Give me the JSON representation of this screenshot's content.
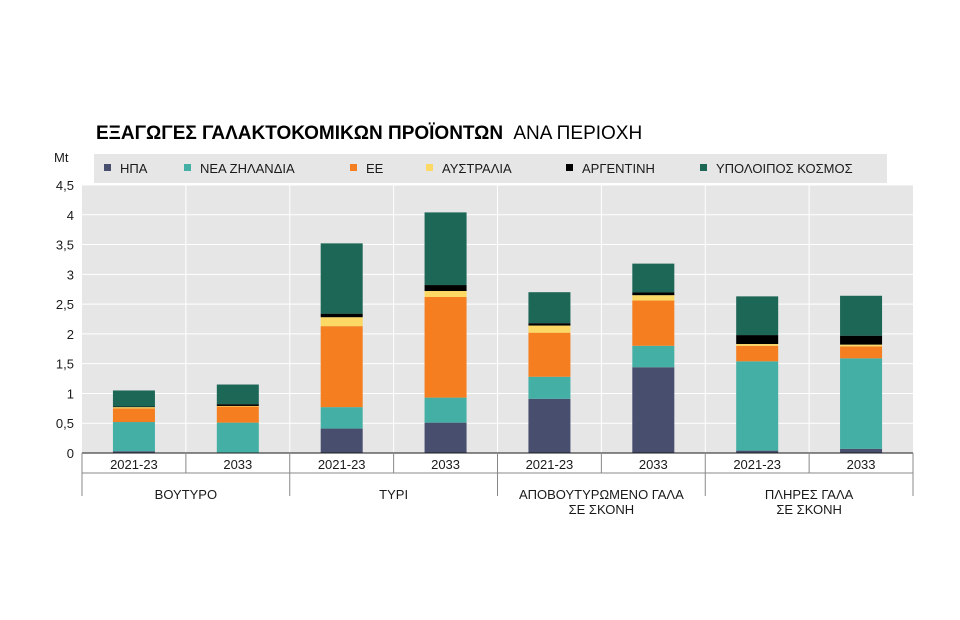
{
  "chart_data": {
    "type": "bar",
    "stacked": true,
    "title_bold": "ΕΞΑΓΩΓΕΣ ΓΑΛΑΚΤΟΚΟΜΙΚΩΝ ΠΡΟΪΟΝΤΩΝ",
    "title_rest": "ΑΝΑ ΠΕΡΙΟΧΗ",
    "ylabel": "Mt",
    "ylim": [
      0,
      4.5
    ],
    "yticks": [
      "0",
      "0,5",
      "1",
      "1,5",
      "2",
      "2,5",
      "3",
      "3,5",
      "4",
      "4,5"
    ],
    "grid": true,
    "legend_position": "top",
    "groups": [
      {
        "label_lines": [
          "ΒΟΥΤΥΡΟ"
        ],
        "categories": [
          "2021-23",
          "2033"
        ]
      },
      {
        "label_lines": [
          "ΤΥΡΙ"
        ],
        "categories": [
          "2021-23",
          "2033"
        ]
      },
      {
        "label_lines": [
          "ΑΠΟΒΟΥΤΥΡΩΜΕΝΟ ΓΑΛΑ",
          "ΣΕ ΣΚΟΝΗ"
        ],
        "categories": [
          "2021-23",
          "2033"
        ]
      },
      {
        "label_lines": [
          "ΠΛΗΡΕΣ ΓΑΛΑ",
          "ΣΕ ΣΚΟΝΗ"
        ],
        "categories": [
          "2021-23",
          "2033"
        ]
      }
    ],
    "series": [
      {
        "name": "ΗΠΑ",
        "color": "#474e6e",
        "values": [
          0.03,
          0.01,
          0.41,
          0.51,
          0.91,
          1.44,
          0.04,
          0.07
        ]
      },
      {
        "name": "ΝΕΑ ΖΗΛΑΝΔΙΑ",
        "color": "#43afa5",
        "values": [
          0.49,
          0.5,
          0.36,
          0.42,
          0.37,
          0.36,
          1.5,
          1.52
        ]
      },
      {
        "name": "ΕΕ",
        "color": "#f47e20",
        "values": [
          0.23,
          0.27,
          1.36,
          1.69,
          0.74,
          0.76,
          0.26,
          0.2
        ]
      },
      {
        "name": "ΑΥΣΤΡΑΛΙΑ",
        "color": "#fcd864",
        "values": [
          0.02,
          0.01,
          0.15,
          0.1,
          0.12,
          0.09,
          0.03,
          0.03
        ]
      },
      {
        "name": "ΑΡΓΕΝΤΙΝΗ",
        "color": "#000000",
        "values": [
          0.01,
          0.03,
          0.06,
          0.1,
          0.04,
          0.05,
          0.15,
          0.15
        ]
      },
      {
        "name": "ΥΠΟΛΟΙΠΟΣ ΚΟΣΜΟΣ",
        "color": "#1c6756",
        "values": [
          0.27,
          0.33,
          1.18,
          1.22,
          0.52,
          0.48,
          0.65,
          0.67
        ]
      }
    ]
  }
}
